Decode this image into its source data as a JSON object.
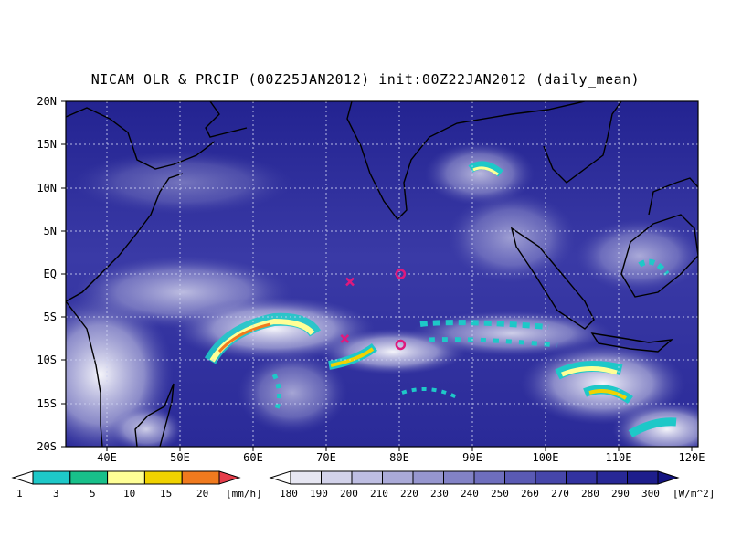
{
  "title": "NICAM OLR & PRCIP (00Z25JAN2012) init:00Z22JAN2012 (daily_mean)",
  "lat_labels": [
    "20N",
    "15N",
    "10N",
    "5N",
    "EQ",
    "5S",
    "10S",
    "15S",
    "20S"
  ],
  "lon_labels": [
    "40E",
    "50E",
    "60E",
    "70E",
    "80E",
    "90E",
    "100E",
    "110E",
    "120E"
  ],
  "precip_colorbar": {
    "colors": [
      "#ffffff",
      "#1ec8c8",
      "#18c08a",
      "#ffff96",
      "#f0d200",
      "#f07a1e",
      "#e63c4a"
    ],
    "labels": [
      "1",
      "3",
      "5",
      "10",
      "15",
      "20"
    ],
    "units": "[mm/h]"
  },
  "olr_colorbar": {
    "colors": [
      "#ffffff",
      "#e6e6f2",
      "#d2d2ea",
      "#bebee2",
      "#aaaad8",
      "#9696cf",
      "#8282c6",
      "#6e6ebd",
      "#5a5ab4",
      "#4646aa",
      "#3232a0",
      "#282896",
      "#1e1e8c",
      "#141482"
    ],
    "labels": [
      "180",
      "190",
      "200",
      "210",
      "220",
      "230",
      "240",
      "250",
      "260",
      "270",
      "280",
      "290",
      "300"
    ],
    "units": "[W/m^2]"
  },
  "markers": [
    {
      "type": "x",
      "lon": 73.2,
      "lat": -0.9,
      "color": "#e0197d"
    },
    {
      "type": "x",
      "lon": 72.5,
      "lat": -7.5,
      "color": "#e0197d"
    },
    {
      "type": "circle",
      "lon": 80.0,
      "lat": 0.0,
      "color": "#e0197d"
    },
    {
      "type": "circle",
      "lon": 80.0,
      "lat": -8.2,
      "color": "#e0197d"
    }
  ]
}
